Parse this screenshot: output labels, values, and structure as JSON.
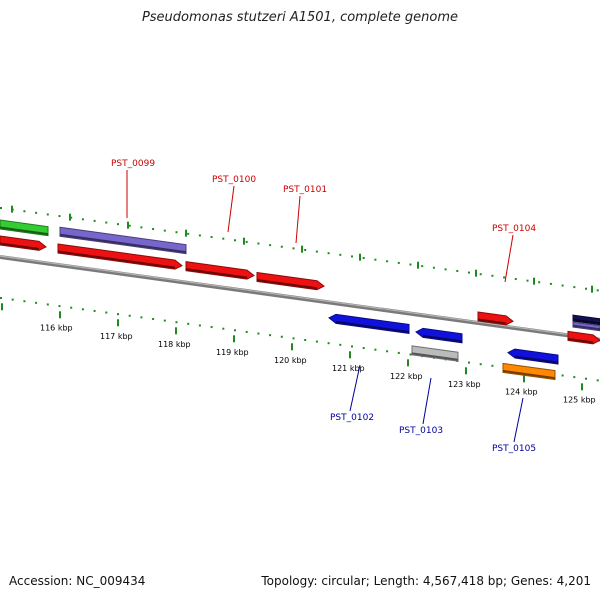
{
  "title": "Pseudomonas stutzeri A1501, complete genome",
  "accession": "Accession: NC_009434",
  "summary": "Topology: circular; Length: 4,567,418 bp; Genes: 4,201",
  "colors": {
    "backbone": "#7a7a7a",
    "tick": "#1f8a1f",
    "forward_label": "#cc0000",
    "reverse_label": "#000099",
    "red": "#ee1111",
    "purple": "#7766cc",
    "green": "#33cc33",
    "blue": "#1111dd",
    "gray": "#bbbbbb",
    "orange": "#ff8800",
    "navy": "#111155"
  },
  "scale_labels": [
    {
      "text": "116 kbp",
      "x": 116
    },
    {
      "text": "117 kbp",
      "x": 117
    },
    {
      "text": "118 kbp",
      "x": 118
    },
    {
      "text": "119 kbp",
      "x": 119
    },
    {
      "text": "120 kbp",
      "x": 120
    },
    {
      "text": "121 kbp",
      "x": 121
    },
    {
      "text": "122 kbp",
      "x": 122
    },
    {
      "text": "123 kbp",
      "x": 123
    },
    {
      "text": "124 kbp",
      "x": 124
    },
    {
      "text": "125 kbp",
      "x": 125
    }
  ],
  "gene_labels": [
    {
      "text": "PST_0099",
      "strand": "forward"
    },
    {
      "text": "PST_0100",
      "strand": "forward"
    },
    {
      "text": "PST_0101",
      "strand": "forward"
    },
    {
      "text": "PST_0104",
      "strand": "forward"
    },
    {
      "text": "PST_0102",
      "strand": "reverse"
    },
    {
      "text": "PST_0103",
      "strand": "reverse"
    },
    {
      "text": "PST_0105",
      "strand": "reverse"
    }
  ]
}
